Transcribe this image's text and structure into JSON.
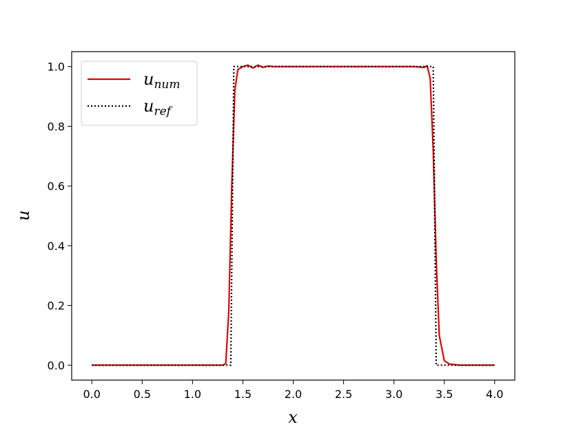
{
  "chart_data": {
    "type": "line",
    "xlabel": "x",
    "ylabel": "u",
    "xlim": [
      -0.2,
      4.2
    ],
    "ylim": [
      -0.05,
      1.05
    ],
    "xticks": [
      "0.0",
      "0.5",
      "1.0",
      "1.5",
      "2.0",
      "2.5",
      "3.0",
      "3.5",
      "4.0"
    ],
    "yticks": [
      "0.0",
      "0.2",
      "0.4",
      "0.6",
      "0.8",
      "1.0"
    ],
    "grid": false,
    "legend": {
      "placement": "top-left",
      "entries": [
        {
          "base": "u",
          "sub": "num",
          "style": "solid",
          "color": "#e00000"
        },
        {
          "base": "u",
          "sub": "ref",
          "style": "dotted",
          "color": "#000000"
        }
      ]
    },
    "series": [
      {
        "legend": "u_num",
        "color": "#e00000",
        "style": "solid",
        "x": [
          0.0,
          0.5,
          1.0,
          1.3,
          1.33,
          1.36,
          1.39,
          1.42,
          1.45,
          1.5,
          1.55,
          1.6,
          1.65,
          1.7,
          1.75,
          1.8,
          2.0,
          2.5,
          3.0,
          3.2,
          3.3,
          3.33,
          3.36,
          3.39,
          3.42,
          3.45,
          3.5,
          3.55,
          3.6,
          3.65,
          3.7,
          4.0
        ],
        "y": [
          0.0,
          0.0,
          0.0,
          0.0,
          0.005,
          0.18,
          0.6,
          0.92,
          0.99,
          1.0,
          1.005,
          0.995,
          1.005,
          0.997,
          1.002,
          1.0,
          1.0,
          1.0,
          1.0,
          1.0,
          0.997,
          1.003,
          0.96,
          0.72,
          0.35,
          0.1,
          0.015,
          0.004,
          0.002,
          0.0,
          0.0,
          0.0
        ]
      },
      {
        "legend": "u_ref",
        "color": "#000000",
        "style": "dotted",
        "x": [
          0.0,
          1.38,
          1.41,
          1.41,
          3.39,
          3.42,
          4.0
        ],
        "y": [
          0.0,
          0.0,
          1.0,
          1.0,
          1.0,
          0.0,
          0.0
        ]
      }
    ]
  }
}
